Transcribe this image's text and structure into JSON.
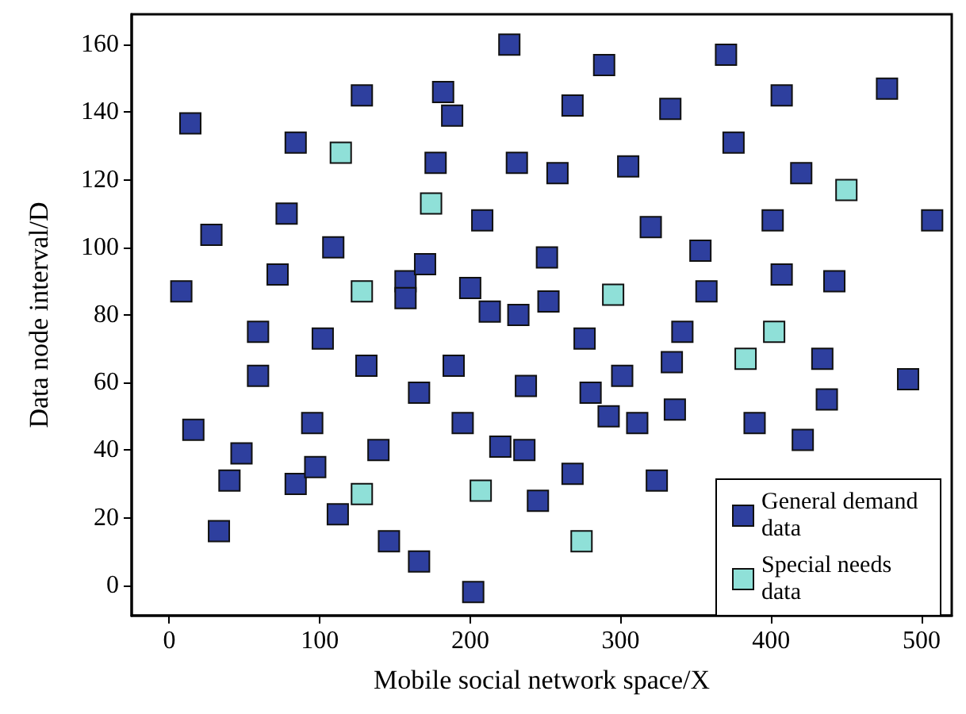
{
  "chart_data": {
    "type": "scatter",
    "xlabel": "Mobile social network space/X",
    "ylabel": "Data node interval/D",
    "xlim": [
      -25,
      520
    ],
    "ylim": [
      -9,
      169
    ],
    "xticks": [
      0,
      100,
      200,
      300,
      400,
      500
    ],
    "yticks": [
      0,
      20,
      40,
      60,
      80,
      100,
      120,
      140,
      160
    ],
    "grid": false,
    "legend": "bottom right",
    "marker": "square",
    "series": [
      {
        "name": "General demand data",
        "color": "#2e3f9e",
        "x": [
          14,
          28,
          8,
          16,
          33,
          40,
          48,
          59,
          59,
          72,
          78,
          84,
          84,
          95,
          97,
          102,
          109,
          112,
          128,
          131,
          139,
          146,
          157,
          157,
          166,
          166,
          170,
          177,
          182,
          188,
          189,
          195,
          200,
          202,
          208,
          213,
          220,
          226,
          231,
          232,
          236,
          237,
          245,
          251,
          252,
          258,
          268,
          268,
          276,
          280,
          289,
          292,
          301,
          305,
          311,
          320,
          324,
          333,
          334,
          336,
          341,
          353,
          357,
          370,
          375,
          389,
          401,
          407,
          407,
          420,
          421,
          434,
          437,
          442,
          477,
          491,
          507
        ],
        "values": [
          136.7,
          103.7,
          87,
          46,
          16,
          31,
          39,
          62,
          75,
          92,
          110,
          30,
          131,
          48,
          35,
          73,
          100,
          21,
          145,
          65,
          40,
          13,
          90,
          85,
          57,
          7,
          95,
          125,
          146,
          139,
          65,
          48,
          88,
          -2,
          108,
          81,
          41,
          160,
          125,
          80,
          40,
          59,
          25,
          97,
          84,
          122,
          142,
          33,
          73,
          57,
          154,
          50,
          62,
          124,
          48,
          106,
          31,
          141,
          66,
          52,
          75,
          99,
          87,
          157,
          131,
          48,
          108,
          145,
          92,
          122,
          43,
          67,
          55,
          90,
          147,
          61,
          108
        ]
      },
      {
        "name": "Special needs data",
        "color": "#8fe0d8",
        "x": [
          114,
          174,
          128,
          128,
          207,
          295,
          274,
          383,
          402,
          450
        ],
        "values": [
          128,
          113,
          87,
          27,
          28,
          86,
          13,
          67,
          75,
          117
        ]
      }
    ]
  }
}
